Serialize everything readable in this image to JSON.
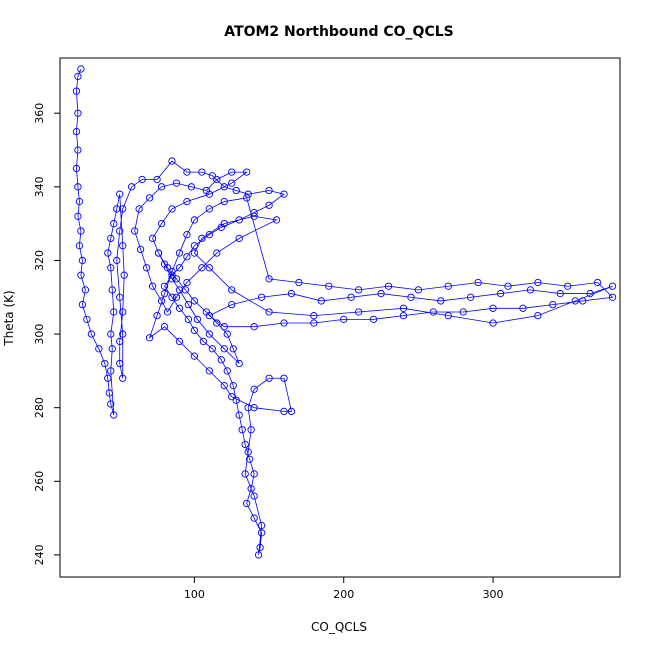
{
  "chart_data": {
    "type": "scatter",
    "title": "ATOM2 Northbound CO_QCLS",
    "xlabel": "CO_QCLS",
    "ylabel": "Theta (K)",
    "xlim": [
      10,
      385
    ],
    "ylim": [
      234,
      375
    ],
    "xticks": [
      100,
      200,
      300
    ],
    "yticks": [
      240,
      260,
      280,
      300,
      320,
      340,
      360
    ],
    "color": "#0000ff",
    "marker": "open-circle",
    "connected": true,
    "series": [
      {
        "values": [
          [
            24,
            372
          ],
          [
            22,
            370
          ],
          [
            21,
            366
          ],
          [
            22,
            360
          ],
          [
            21,
            355
          ],
          [
            22,
            350
          ],
          [
            21,
            345
          ],
          [
            22,
            340
          ],
          [
            23,
            336
          ],
          [
            22,
            332
          ],
          [
            24,
            328
          ],
          [
            23,
            324
          ],
          [
            25,
            320
          ],
          [
            24,
            316
          ],
          [
            27,
            312
          ],
          [
            25,
            308
          ],
          [
            28,
            304
          ],
          [
            31,
            300
          ],
          [
            36,
            296
          ],
          [
            40,
            292
          ],
          [
            42,
            288
          ],
          [
            43,
            284
          ],
          [
            44,
            281
          ],
          [
            46,
            278
          ],
          [
            44,
            290
          ],
          [
            45,
            296
          ],
          [
            44,
            300
          ],
          [
            46,
            306
          ],
          [
            45,
            312
          ],
          [
            44,
            318
          ],
          [
            42,
            322
          ],
          [
            44,
            326
          ],
          [
            46,
            330
          ],
          [
            48,
            334
          ],
          [
            50,
            338
          ],
          [
            52,
            324
          ],
          [
            53,
            316
          ],
          [
            52,
            306
          ],
          [
            50,
            298
          ],
          [
            50,
            292
          ],
          [
            52,
            288
          ],
          [
            52,
            300
          ],
          [
            50,
            310
          ],
          [
            48,
            320
          ],
          [
            50,
            328
          ],
          [
            52,
            334
          ],
          [
            58,
            340
          ],
          [
            65,
            342
          ],
          [
            75,
            342
          ],
          [
            85,
            347
          ],
          [
            95,
            344
          ],
          [
            105,
            344
          ],
          [
            112,
            343
          ],
          [
            120,
            340
          ],
          [
            128,
            339
          ],
          [
            136,
            338
          ],
          [
            150,
            339
          ],
          [
            160,
            338
          ],
          [
            150,
            335
          ],
          [
            140,
            333
          ],
          [
            130,
            331
          ],
          [
            118,
            329
          ],
          [
            110,
            327
          ],
          [
            100,
            324
          ],
          [
            95,
            321
          ],
          [
            90,
            318
          ],
          [
            85,
            316
          ],
          [
            80,
            313
          ],
          [
            85,
            310
          ],
          [
            90,
            307
          ],
          [
            96,
            304
          ],
          [
            100,
            301
          ],
          [
            106,
            298
          ],
          [
            112,
            296
          ],
          [
            118,
            293
          ],
          [
            122,
            290
          ],
          [
            126,
            286
          ],
          [
            128,
            282
          ],
          [
            130,
            278
          ],
          [
            132,
            274
          ],
          [
            134,
            270
          ],
          [
            137,
            266
          ],
          [
            140,
            262
          ],
          [
            138,
            258
          ],
          [
            135,
            254
          ],
          [
            140,
            250
          ],
          [
            145,
            246
          ],
          [
            144,
            242
          ],
          [
            143,
            240
          ],
          [
            145,
            248
          ],
          [
            140,
            256
          ],
          [
            134,
            262
          ],
          [
            136,
            268
          ],
          [
            138,
            274
          ],
          [
            136,
            280
          ],
          [
            140,
            285
          ],
          [
            150,
            288
          ],
          [
            160,
            288
          ],
          [
            165,
            279
          ],
          [
            160,
            279
          ],
          [
            140,
            280
          ],
          [
            125,
            283
          ],
          [
            120,
            286
          ],
          [
            110,
            290
          ],
          [
            100,
            294
          ],
          [
            90,
            298
          ],
          [
            80,
            302
          ],
          [
            70,
            299
          ],
          [
            75,
            305
          ],
          [
            80,
            311
          ],
          [
            85,
            317
          ],
          [
            90,
            322
          ],
          [
            95,
            327
          ],
          [
            100,
            331
          ],
          [
            110,
            334
          ],
          [
            120,
            336
          ],
          [
            135,
            337
          ],
          [
            150,
            315
          ],
          [
            170,
            314
          ],
          [
            190,
            313
          ],
          [
            210,
            312
          ],
          [
            230,
            313
          ],
          [
            250,
            312
          ],
          [
            270,
            313
          ],
          [
            290,
            314
          ],
          [
            310,
            313
          ],
          [
            330,
            314
          ],
          [
            350,
            313
          ],
          [
            370,
            314
          ],
          [
            380,
            310
          ],
          [
            360,
            309
          ],
          [
            340,
            308
          ],
          [
            320,
            307
          ],
          [
            300,
            307
          ],
          [
            280,
            306
          ],
          [
            260,
            306
          ],
          [
            240,
            305
          ],
          [
            220,
            304
          ],
          [
            200,
            304
          ],
          [
            180,
            303
          ],
          [
            160,
            303
          ],
          [
            140,
            302
          ],
          [
            120,
            302
          ],
          [
            110,
            305
          ],
          [
            125,
            308
          ],
          [
            145,
            310
          ],
          [
            165,
            311
          ],
          [
            185,
            309
          ],
          [
            205,
            310
          ],
          [
            225,
            311
          ],
          [
            245,
            310
          ],
          [
            265,
            309
          ],
          [
            285,
            310
          ],
          [
            305,
            311
          ],
          [
            325,
            312
          ],
          [
            345,
            311
          ],
          [
            365,
            311
          ],
          [
            380,
            313
          ],
          [
            355,
            309
          ],
          [
            330,
            305
          ],
          [
            300,
            303
          ],
          [
            270,
            305
          ],
          [
            240,
            307
          ],
          [
            210,
            306
          ],
          [
            180,
            305
          ],
          [
            150,
            306
          ],
          [
            125,
            312
          ],
          [
            110,
            318
          ],
          [
            100,
            322
          ],
          [
            105,
            326
          ],
          [
            120,
            330
          ],
          [
            140,
            332
          ],
          [
            155,
            331
          ],
          [
            130,
            326
          ],
          [
            115,
            322
          ],
          [
            105,
            318
          ],
          [
            95,
            314
          ],
          [
            88,
            310
          ],
          [
            82,
            306
          ],
          [
            78,
            309
          ],
          [
            72,
            313
          ],
          [
            68,
            318
          ],
          [
            64,
            323
          ],
          [
            60,
            328
          ],
          [
            63,
            334
          ],
          [
            70,
            337
          ],
          [
            78,
            340
          ],
          [
            88,
            341
          ],
          [
            98,
            340
          ],
          [
            108,
            339
          ],
          [
            115,
            342
          ],
          [
            125,
            344
          ],
          [
            135,
            344
          ],
          [
            125,
            341
          ],
          [
            110,
            338
          ],
          [
            95,
            336
          ],
          [
            85,
            334
          ],
          [
            78,
            330
          ],
          [
            72,
            326
          ],
          [
            76,
            322
          ],
          [
            82,
            318
          ],
          [
            88,
            315
          ],
          [
            94,
            312
          ],
          [
            100,
            309
          ],
          [
            108,
            306
          ],
          [
            115,
            303
          ],
          [
            122,
            300
          ],
          [
            126,
            296
          ],
          [
            130,
            292
          ],
          [
            120,
            296
          ],
          [
            110,
            300
          ],
          [
            102,
            304
          ],
          [
            96,
            308
          ],
          [
            90,
            312
          ],
          [
            85,
            315
          ],
          [
            80,
            319
          ],
          [
            76,
            322
          ]
        ]
      }
    ]
  }
}
